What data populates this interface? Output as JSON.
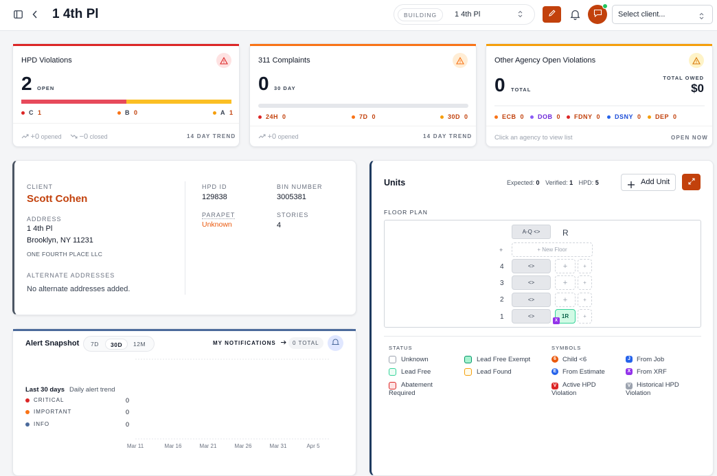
{
  "header": {
    "title": "1 4th Pl",
    "building_label": "BUILDING",
    "building_value": "1 4th Pl",
    "client_placeholder": "Select client..."
  },
  "colors": {
    "accent": "#c2410c",
    "red": "#dc2626",
    "amber": "#f59e0b",
    "orange": "#f97316"
  },
  "hpd": {
    "title": "HPD Violations",
    "count": "2",
    "count_label": "OPEN",
    "cats": [
      {
        "name": "C",
        "value": "1"
      },
      {
        "name": "B",
        "value": "0"
      },
      {
        "name": "A",
        "value": "1"
      }
    ],
    "opened": "+0",
    "opened_label": "opened",
    "closed": "−0",
    "closed_label": "closed",
    "trend_label": "14 DAY TREND",
    "bar": {
      "red_fraction": 0.5,
      "amber_fraction": 0.5
    }
  },
  "complaints": {
    "title": "311 Complaints",
    "count": "0",
    "count_label": "30 DAY",
    "cats": [
      {
        "name": "24H",
        "value": "0"
      },
      {
        "name": "7D",
        "value": "0"
      },
      {
        "name": "30D",
        "value": "0"
      }
    ],
    "opened": "+0",
    "opened_label": "opened",
    "trend_label": "14 DAY TREND"
  },
  "agency": {
    "title": "Other Agency Open Violations",
    "count": "0",
    "count_label": "TOTAL",
    "owed_label": "TOTAL OWED",
    "owed": "$0",
    "cats": [
      {
        "name": "ECB",
        "value": "0"
      },
      {
        "name": "DOB",
        "value": "0"
      },
      {
        "name": "FDNY",
        "value": "0"
      },
      {
        "name": "DSNY",
        "value": "0"
      },
      {
        "name": "DEP",
        "value": "0"
      }
    ],
    "hint": "Click an agency to view list",
    "open_now": "OPEN NOW"
  },
  "info": {
    "client_label": "CLIENT",
    "client": "Scott Cohen",
    "address_label": "ADDRESS",
    "address1": "1 4th Pl",
    "address2": "Brooklyn, NY 11231",
    "owner": "ONE FOURTH PLACE LLC",
    "alt_label": "ALTERNATE ADDRESSES",
    "alt_value": "No alternate addresses added.",
    "hpd_id_label": "HPD ID",
    "hpd_id": "129838",
    "bin_label": "BIN NUMBER",
    "bin": "3005381",
    "parapet_label": "PARAPET",
    "parapet": "Unknown",
    "stories_label": "STORIES",
    "stories": "4"
  },
  "units": {
    "title": "Units",
    "expected_label": "Expected:",
    "expected": "0",
    "verified_label": "Verified:",
    "verified": "1",
    "hpd_label": "HPD:",
    "hpd": "5",
    "add_label": "Add Unit",
    "floorplan_label": "FLOOR PLAN",
    "roof_btn": "A-Q",
    "roof": "R",
    "new_floor": "+ New Floor",
    "plus": "+",
    "floors": [
      "4",
      "3",
      "2",
      "1"
    ],
    "unit_1r": "1R",
    "unit_badge": "X",
    "expand": "<>"
  },
  "legend": {
    "status_label": "STATUS",
    "symbols_label": "SYMBOLS",
    "status": [
      "Unknown",
      "Lead Free Exempt",
      "Lead Free",
      "Lead Found",
      "Abatement",
      "Required"
    ],
    "symbols": [
      {
        "k": "6",
        "t": "Child <6"
      },
      {
        "k": "J",
        "t": "From Job"
      },
      {
        "k": "E",
        "t": "From Estimate"
      },
      {
        "k": "X",
        "t": "From XRF"
      },
      {
        "k": "V",
        "t": "Active HPD"
      },
      {
        "k": "V",
        "t": "Historical HPD"
      }
    ],
    "violation": "Violation"
  },
  "alerts": {
    "title": "Alert Snapshot",
    "ranges": [
      "7D",
      "30D",
      "12M"
    ],
    "notif": "MY NOTIFICATIONS",
    "total": "0 TOTAL",
    "period": "Last 30 days",
    "period_sub": "Daily alert trend",
    "levels": [
      {
        "name": "CRITICAL",
        "value": "0"
      },
      {
        "name": "IMPORTANT",
        "value": "0"
      },
      {
        "name": "INFO",
        "value": "0"
      }
    ]
  },
  "chart_data": {
    "type": "line",
    "title": "Daily alert trend",
    "categories": [
      "Mar 11",
      "Mar 16",
      "Mar 21",
      "Mar 26",
      "Mar 31",
      "Apr 5"
    ],
    "series": [
      {
        "name": "CRITICAL",
        "values": [
          0,
          0,
          0,
          0,
          0,
          0
        ]
      },
      {
        "name": "IMPORTANT",
        "values": [
          0,
          0,
          0,
          0,
          0,
          0
        ]
      },
      {
        "name": "INFO",
        "values": [
          0,
          0,
          0,
          0,
          0,
          0
        ]
      }
    ]
  }
}
